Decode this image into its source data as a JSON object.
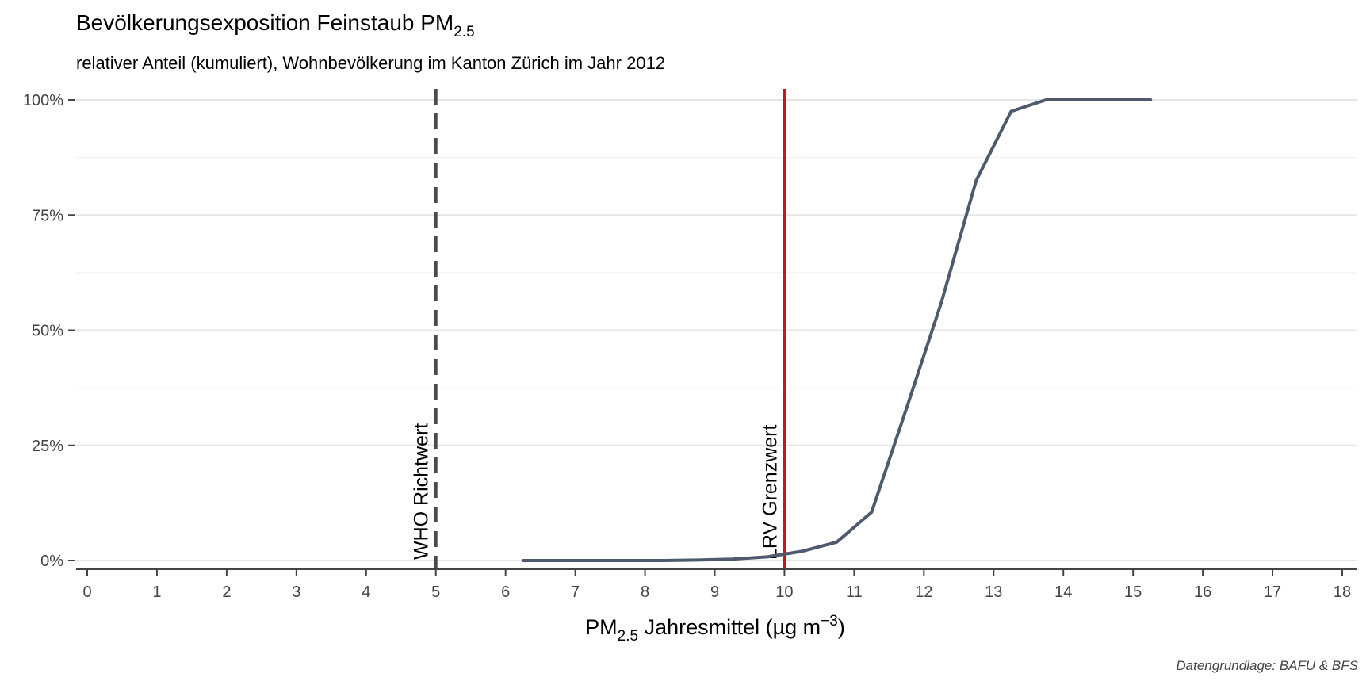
{
  "chart_data": {
    "type": "line",
    "title": {
      "main": "Bevölkerungsexposition Feinstaub PM",
      "sub": "2.5"
    },
    "subtitle": "relativer Anteil (kumuliert), Wohnbevölkerung im Kanton Zürich im Jahr 2012",
    "xlabel": {
      "pre": "PM",
      "sub": "2.5",
      "mid": " Jahresmittel (µg m",
      "sup": "−3",
      "post": ")"
    },
    "caption": "Datengrundlage: BAFU & BFS",
    "xlim": [
      0,
      18
    ],
    "ylim": [
      0,
      1
    ],
    "x_ticks": [
      0,
      1,
      2,
      3,
      4,
      5,
      6,
      7,
      8,
      9,
      10,
      11,
      12,
      13,
      14,
      15,
      16,
      17,
      18
    ],
    "y_ticks": [
      {
        "value": 0,
        "label": "0%"
      },
      {
        "value": 0.25,
        "label": "25%"
      },
      {
        "value": 0.5,
        "label": "50%"
      },
      {
        "value": 0.75,
        "label": "75%"
      },
      {
        "value": 1.0,
        "label": "100%"
      }
    ],
    "grid": true,
    "reference_lines": [
      {
        "x": 5,
        "label": "WHO Richtwert",
        "style": "dashed",
        "color": "#4a4a4a"
      },
      {
        "x": 10,
        "label": "LRV Grenzwert",
        "style": "solid",
        "color": "#c8161d"
      }
    ],
    "series": [
      {
        "color": "#4f5a6e",
        "points": [
          [
            6.25,
            0.0
          ],
          [
            6.75,
            0.0
          ],
          [
            7.25,
            0.0
          ],
          [
            7.75,
            0.0
          ],
          [
            8.25,
            0.0
          ],
          [
            8.75,
            0.001
          ],
          [
            9.25,
            0.003
          ],
          [
            9.75,
            0.008
          ],
          [
            10.25,
            0.02
          ],
          [
            10.75,
            0.04
          ],
          [
            11.25,
            0.105
          ],
          [
            11.75,
            0.33
          ],
          [
            12.25,
            0.56
          ],
          [
            12.75,
            0.825
          ],
          [
            13.25,
            0.975
          ],
          [
            13.75,
            1.0
          ],
          [
            14.25,
            1.0
          ],
          [
            14.75,
            1.0
          ],
          [
            15.25,
            1.0
          ]
        ]
      }
    ]
  }
}
